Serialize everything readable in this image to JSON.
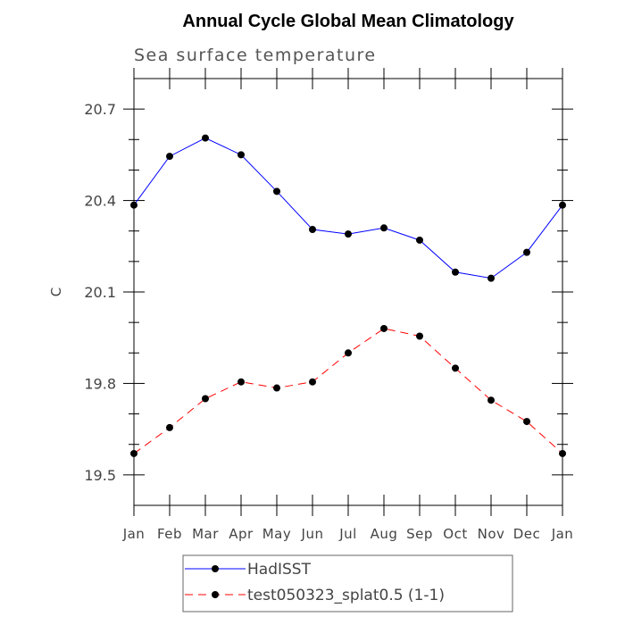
{
  "chart_data": {
    "type": "line",
    "title": "Annual Cycle Global Mean Climatology",
    "subtitle": "Sea surface temperature",
    "ylabel": "C",
    "xlabel": "",
    "categories": [
      "Jan",
      "Feb",
      "Mar",
      "Apr",
      "May",
      "Jun",
      "Jul",
      "Aug",
      "Sep",
      "Oct",
      "Nov",
      "Dec",
      "Jan"
    ],
    "ylim": [
      19.4,
      20.8
    ],
    "yticks": [
      "20.7",
      "20.4",
      "20.1",
      "19.8",
      "19.5"
    ],
    "series": [
      {
        "name": "HadISST",
        "color": "#0000ff",
        "dash": "solid",
        "values": [
          20.385,
          20.545,
          20.605,
          20.55,
          20.43,
          20.305,
          20.29,
          20.31,
          20.27,
          20.165,
          20.145,
          20.23,
          20.385
        ]
      },
      {
        "name": "test050323_splat0.5 (1-1)",
        "color": "#ff0000",
        "dash": "dashed",
        "values": [
          19.57,
          19.655,
          19.75,
          19.805,
          19.785,
          19.805,
          19.9,
          19.98,
          19.955,
          19.85,
          19.745,
          19.675,
          19.57
        ]
      }
    ],
    "legend": "bottom-center",
    "grid": false
  }
}
